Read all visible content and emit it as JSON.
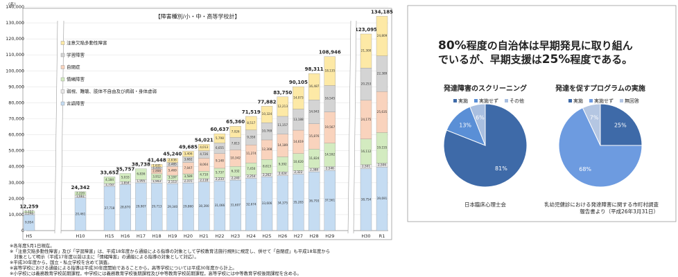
{
  "chart_data": [
    {
      "type": "bar",
      "stacked": true,
      "title": "【障害種別/小・中・高等学校計】",
      "y_unit": "(名)",
      "categories": [
        "H5",
        "H10",
        "H15",
        "H16",
        "H17",
        "H18",
        "H19",
        "H20",
        "H21",
        "H22",
        "H23",
        "H24",
        "H25",
        "H26",
        "H27",
        "H28",
        "H29",
        "H30",
        "R1"
      ],
      "series": [
        {
          "name": "言語障害",
          "color": "#c5dcf2",
          "values": [
            9954,
            20461,
            27718,
            28870,
            29907,
            29713,
            29340,
            29860,
            30390,
            31066,
            31607,
            32674,
            33606,
            34375,
            35283,
            36793,
            37561,
            38754,
            39691
          ],
          "value_labels": [
            "9,954",
            "20,461",
            "27,718",
            "28,870",
            "29,907",
            "29,713",
            "29,340",
            "29,860",
            "30,390",
            "31,066",
            "31,607",
            "32,674",
            "33,606",
            "34,375",
            "35,283",
            "36,793",
            "37,561",
            "38,754",
            "39,691"
          ]
        },
        {
          "name": "弱視、難聴、肢体不自由及び病弱・身体虚弱",
          "color": "#e7e6e6",
          "values": [
            1148,
            1661,
            1750,
            1854,
            1995,
            1943,
            2113,
            2101,
            2118,
            2233,
            2240,
            2254,
            2262,
            2424,
            2322,
            2388,
            2546,
            2501,
            2506
          ],
          "value_labels": [
            "1,148",
            "1,661",
            "1,750",
            "1,854",
            "1,995",
            "1,943",
            "2,113",
            "2,101",
            "2,118",
            "2,233",
            "2,240",
            "2,254",
            "2,262",
            "2,424",
            "2,322",
            "2,388",
            "2,546",
            "2,501",
            "2,506"
          ]
        },
        {
          "name": "情緒障害",
          "color": "#d3ebc0",
          "values": [
            1157,
            2220,
            4184,
            5033,
            6836,
            3912,
            3197,
            3589,
            4710,
            5737,
            6332,
            7450,
            8613,
            9392,
            10620,
            11824,
            14592,
            16112,
            19155
          ],
          "value_labels": [
            "1,157",
            "2,220",
            "4,184",
            "5,033",
            "6,836",
            "3,912",
            "3,197",
            "3,589",
            "4,710",
            "5,737",
            "6,332",
            "7,450",
            "8,613",
            "9,392",
            "10,620",
            "11,824",
            "14,592",
            "16,112",
            "19,155"
          ]
        },
        {
          "name": "自閉症",
          "color": "#f9d3bd",
          "values": [
            null,
            null,
            null,
            null,
            null,
            2898,
            5469,
            7047,
            8064,
            9148,
            10342,
            11274,
            12308,
            14189,
            14619,
            15876,
            19567,
            24175,
            25635
          ],
          "value_labels": [
            null,
            null,
            null,
            null,
            null,
            "2,898",
            "5,469",
            "7,047",
            "8,064",
            "9,148",
            "10,342",
            "11,274",
            "12,308",
            "14,189",
            "14,619",
            "15,876",
            "19,567",
            "24,175",
            "25,635"
          ]
        },
        {
          "name": "学習障害",
          "color": "#d4d4d4",
          "values": [
            null,
            null,
            null,
            null,
            null,
            1351,
            2485,
            3682,
            4726,
            6655,
            7813,
            9350,
            10769,
            11157,
            13188,
            14943,
            16545,
            20253,
            22389
          ],
          "value_labels": [
            null,
            null,
            null,
            null,
            null,
            "1,351",
            "2,485",
            "3,682",
            "4,726",
            "6,655",
            "7,813",
            "9,350",
            "10,769",
            "11,157",
            "13,188",
            "14,943",
            "16,545",
            "20,253",
            "22,389"
          ]
        },
        {
          "name": "注意欠陥多動性障害",
          "color": "#fde9a6",
          "values": [
            null,
            null,
            null,
            null,
            null,
            1631,
            2636,
            3406,
            4013,
            5798,
            7026,
            8517,
            10324,
            12213,
            14073,
            16487,
            18135,
            21300,
            24809
          ],
          "value_labels": [
            null,
            null,
            null,
            null,
            null,
            "1,631",
            "2,636",
            "3,406",
            "4,013",
            "5,798",
            "7,026",
            "8,517",
            "10,324",
            "12,213",
            "14,073",
            "16,487",
            "18,135",
            "21,300",
            "24,809"
          ]
        }
      ],
      "totals": [
        12259,
        24342,
        33652,
        35757,
        38738,
        41448,
        45240,
        49685,
        54021,
        60637,
        65360,
        71519,
        77882,
        83750,
        90105,
        98311,
        108946,
        123095,
        134185
      ],
      "total_labels": [
        "12,259",
        "24,342",
        "33,652",
        "35,757",
        "38,738",
        "41,448",
        "45,240",
        "49,685",
        "54,021",
        "60,637",
        "65,360",
        "71,519",
        "77,882",
        "83,750",
        "90,105",
        "98,311",
        "108,946",
        "123,095",
        "134,185"
      ],
      "ylim": [
        0,
        140000
      ],
      "yticks": [
        0,
        {
          "value": 10000,
          "label": "10,000"
        },
        {
          "value": 20000,
          "label": "20,000"
        },
        {
          "value": 30000,
          "label": "30,000"
        },
        {
          "value": 40000,
          "label": "40,000"
        },
        {
          "value": 50000,
          "label": "50,000"
        },
        {
          "value": 60000,
          "label": "60,000"
        },
        {
          "value": 70000,
          "label": "70,000"
        },
        {
          "value": 80000,
          "label": "80,000"
        },
        {
          "value": 90000,
          "label": "90,000"
        },
        {
          "value": 100000,
          "label": "100,000"
        },
        {
          "value": 110000,
          "label": "110,000"
        },
        {
          "value": 120000,
          "label": "120,000"
        },
        {
          "value": 130000,
          "label": "130,000"
        },
        {
          "value": 140000,
          "label": "140,000"
        }
      ],
      "grid": true,
      "legend": "upper left",
      "notes": [
        "※各年度5月1日現在。",
        "※「注意欠陥多動性障害」及び「学習障害」は、平成18年度から通級による指導の対象として学校教育法施行規則に規定し、併せて「自閉症」も平成18年度から",
        "　対象として明示（平成17年度以前は主に「情緒障害」の通級による指導の対象として対応）。",
        "※平成30年度から，国立・私立学校を含めて調査。",
        "※高等学校における通級による指導は平成30年度開始であることから，高等学校については平成30年度から計上。",
        "※小学校には義務教育学校前期課程，中学校には義務教育学校後期課程及び中等教育学校前期課程，高等学校には中等教育学校後期課程を含める。"
      ]
    },
    {
      "type": "pie",
      "title": "発達障害のスクリーニング",
      "categories": [
        "実施",
        "実施せず",
        "その他"
      ],
      "values": [
        81,
        13,
        6
      ],
      "value_labels": [
        "81%",
        "13%",
        "6%"
      ],
      "colors": [
        "#3e6aa8",
        "#5a8fd6",
        "#a9bfe0"
      ],
      "source": "日本臨床心理士会"
    },
    {
      "type": "pie",
      "title": "発達を促すプログラムの実施",
      "categories": [
        "実施",
        "実施せず",
        "無回答"
      ],
      "values": [
        25,
        68,
        7
      ],
      "value_labels": [
        "25%",
        "68%",
        "7%"
      ],
      "colors": [
        "#3e6aa8",
        "#6d9be0",
        "#b4c6e2"
      ],
      "source": "乳幼児健診における発達障害に関する市町村調査報告書より（平成26年3月31日）"
    }
  ],
  "headline": {
    "line1": [
      "80%",
      "程度の自治体は早期発見に取り組ん"
    ],
    "line2": [
      "でいるが、早期支援は",
      "25%",
      "程度である。"
    ]
  }
}
